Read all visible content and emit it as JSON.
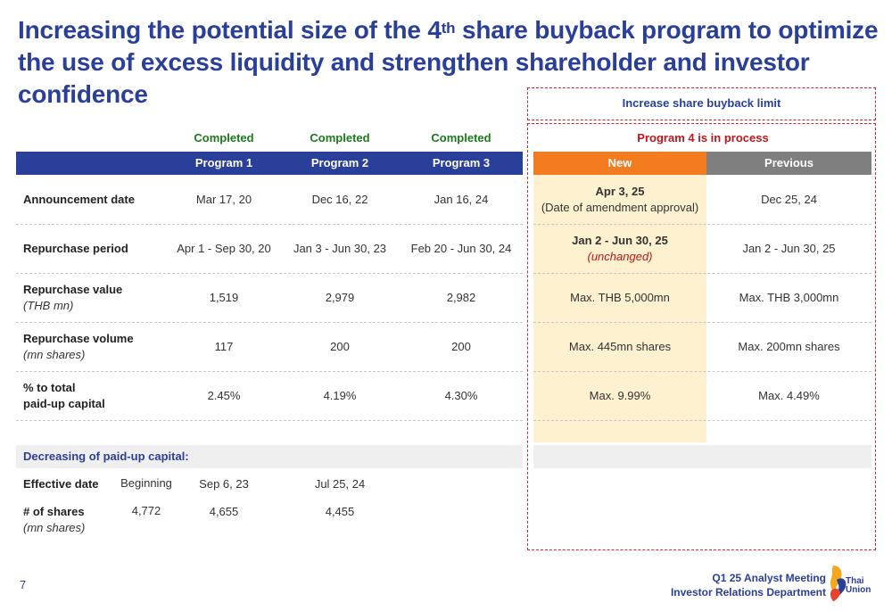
{
  "title": {
    "part1": "Increasing the potential size of the 4",
    "sup": "th",
    "part2": " share buyback program to optimize the use of excess liquidity and strengthen shareholder and investor confidence"
  },
  "increase_box_label": "Increase share buyback limit",
  "status": {
    "p1": "Completed",
    "p2": "Completed",
    "p3": "Completed",
    "p4": "Program 4 is in process"
  },
  "headers": {
    "p1": "Program 1",
    "p2": "Program 2",
    "p3": "Program 3",
    "new": "New",
    "previous": "Previous"
  },
  "rows": {
    "announcement": {
      "label": "Announcement date",
      "p1": "Mar 17, 20",
      "p2": "Dec 16, 22",
      "p3": "Jan 16, 24",
      "new_main": "Apr 3, 25",
      "new_sub": "(Date of amendment approval)",
      "previous": "Dec 25, 24"
    },
    "period": {
      "label": "Repurchase period",
      "p1": "Apr 1 - Sep 30, 20",
      "p2": "Jan 3 - Jun 30, 23",
      "p3": "Feb 20 - Jun 30, 24",
      "new_main": "Jan 2 - Jun 30, 25",
      "new_sub": "(unchanged)",
      "previous": "Jan 2 - Jun 30, 25"
    },
    "value": {
      "label": "Repurchase value",
      "unit": "(THB mn)",
      "p1": "1,519",
      "p2": "2,979",
      "p3": "2,982",
      "new": "Max. THB 5,000mn",
      "previous": "Max. THB 3,000mn"
    },
    "volume": {
      "label": "Repurchase volume",
      "unit": "(mn shares)",
      "p1": "117",
      "p2": "200",
      "p3": "200",
      "new": "Max. 445mn shares",
      "previous": "Max. 200mn shares"
    },
    "pct": {
      "label1": "% to total",
      "label2": "paid-up capital",
      "p1": "2.45%",
      "p2": "4.19%",
      "p3": "4.30%",
      "new": "Max. 9.99%",
      "previous": "Max. 4.49%"
    }
  },
  "paidup": {
    "header": "Decreasing of paid-up capital:",
    "effective_label": "Effective date",
    "effective_values": [
      "Beginning",
      "Sep 6, 23",
      "Jul 25, 24"
    ],
    "shares_label": "# of shares",
    "shares_unit": "(mn shares)",
    "shares_values": [
      "4,772",
      "4,655",
      "4,455"
    ]
  },
  "footer": {
    "page": "7",
    "line1": "Q1 25 Analyst Meeting",
    "line2": "Investor Relations Department",
    "logo_text1": "Thai",
    "logo_text2": "Union"
  },
  "colors": {
    "navy": "#2a3f9a",
    "orange": "#f47c20",
    "gray": "#7f7f7f",
    "highlight": "#fdf1cf",
    "green": "#1a7a1a",
    "red": "#d9252a"
  }
}
